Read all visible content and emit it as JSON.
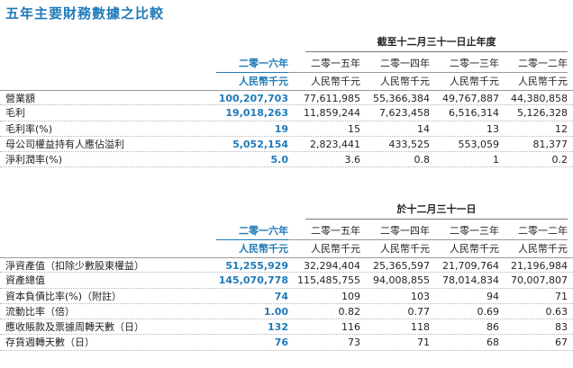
{
  "title": "五年主要財務數據之比較",
  "section1": {
    "period": "截至十二月三十一日止年度",
    "columns": [
      {
        "year": "二零一六年",
        "currency": "人民幣千元"
      },
      {
        "year": "二零一五年",
        "currency": "人民幣千元"
      },
      {
        "year": "二零一四年",
        "currency": "人民幣千元"
      },
      {
        "year": "二零一三年",
        "currency": "人民幣千元"
      },
      {
        "year": "二零一二年",
        "currency": "人民幣千元"
      }
    ],
    "rows": [
      {
        "label": "營業額",
        "values": [
          "100,207,703",
          "77,611,985",
          "55,366,384",
          "49,767,887",
          "44,380,858"
        ]
      },
      {
        "label": "毛利",
        "values": [
          "19,018,263",
          "11,859,244",
          "7,623,458",
          "6,516,314",
          "5,126,328"
        ]
      },
      {
        "label": "毛利率(%)",
        "values": [
          "19",
          "15",
          "14",
          "13",
          "12"
        ]
      },
      {
        "label": "母公司權益持有人應佔溢利",
        "values": [
          "5,052,154",
          "2,823,441",
          "433,525",
          "553,059",
          "81,377"
        ]
      },
      {
        "label": "淨利潤率(%)",
        "values": [
          "5.0",
          "3.6",
          "0.8",
          "1",
          "0.2"
        ]
      }
    ]
  },
  "section2": {
    "period": "於十二月三十一日",
    "columns": [
      {
        "year": "二零一六年",
        "currency": "人民幣千元"
      },
      {
        "year": "二零一五年",
        "currency": "人民幣千元"
      },
      {
        "year": "二零一四年",
        "currency": "人民幣千元"
      },
      {
        "year": "二零一三年",
        "currency": "人民幣千元"
      },
      {
        "year": "二零一二年",
        "currency": "人民幣千元"
      }
    ],
    "rows": [
      {
        "label": "淨資產值（扣除少數股東權益）",
        "values": [
          "51,255,929",
          "32,294,404",
          "25,365,597",
          "21,709,764",
          "21,196,984"
        ]
      },
      {
        "label": "資產總值",
        "values": [
          "145,070,778",
          "115,485,755",
          "94,008,855",
          "78,014,834",
          "70,007,807"
        ]
      },
      {
        "label": "資本負債比率(%)（附註）",
        "values": [
          "74",
          "109",
          "103",
          "94",
          "71"
        ]
      },
      {
        "label": "流動比率（倍）",
        "values": [
          "1.00",
          "0.82",
          "0.77",
          "0.69",
          "0.63"
        ]
      },
      {
        "label": "應收賬款及票據周轉天數（日）",
        "values": [
          "132",
          "116",
          "118",
          "86",
          "83"
        ]
      },
      {
        "label": "存貨週轉天數（日）",
        "values": [
          "76",
          "73",
          "71",
          "68",
          "67"
        ]
      }
    ]
  },
  "colors": {
    "accent": "#1f7ab8",
    "text": "#231f20",
    "rule": "#9a9a9a"
  }
}
